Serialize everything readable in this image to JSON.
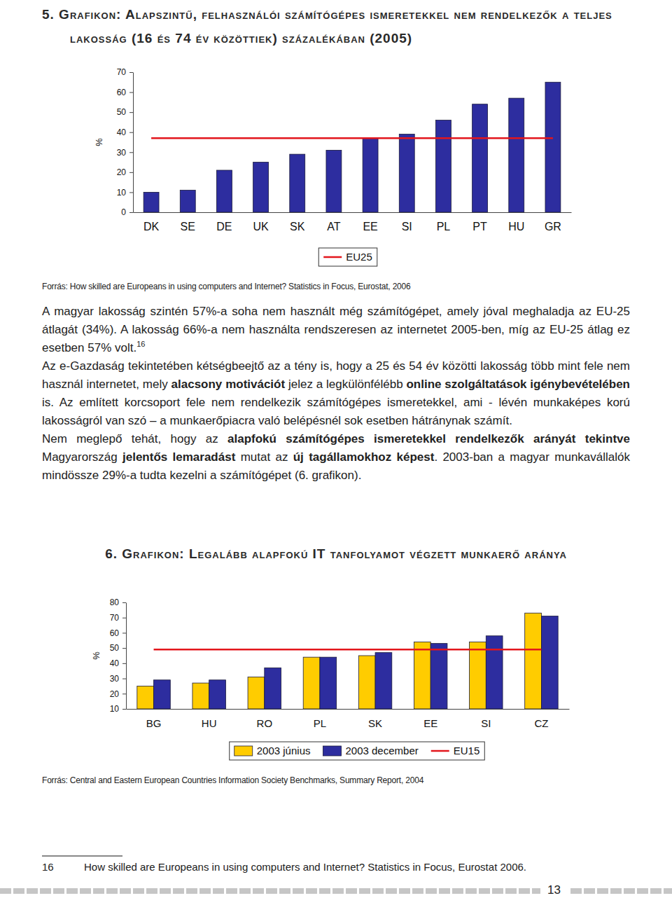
{
  "page": {
    "paragraphs": [
      [
        {
          "text": "A magyar lakosság szintén 57%-a soha nem használt még számítógépet, amely jóval meghaladja az EU-25 átlagát (34%). A lakosság 66%-a nem használta rendszeresen az internetet 2005-ben, míg az EU-25 átlag ez esetben 57% volt."
        },
        {
          "text": "16",
          "sup": true
        }
      ],
      [
        {
          "text": "Az e-Gazdaság tekintetében kétségbeejtő az a tény is, hogy a 25 és 54 év közötti lakosság több mint fele nem használ internetet, mely "
        },
        {
          "text": "alacsony motivációt",
          "bold": true
        },
        {
          "text": " jelez a legkülönfélébb "
        },
        {
          "text": "online szolgáltatások igénybevételében",
          "bold": true
        },
        {
          "text": " is. Az említett korcsoport fele nem rendelkezik számítógépes ismeretekkel, ami - lévén munkaképes korú lakosságról van szó – a munkaerőpiacra való belépésnél sok esetben hátránynak számít."
        }
      ],
      [
        {
          "text": "Nem meglepő tehát, hogy az "
        },
        {
          "text": "alapfokú számítógépes ismeretekkel rendelkezők arányát tekintve",
          "bold": true
        },
        {
          "text": " Magyarország "
        },
        {
          "text": "jelentős lemaradást",
          "bold": true
        },
        {
          "text": " mutat az "
        },
        {
          "text": "új tagállamokhoz képest",
          "bold": true
        },
        {
          "text": ". 2003-ban a magyar munkavállalók mindössze 29%-a tudta kezelni a számítógépet (6. grafikon)."
        }
      ]
    ],
    "footnote": {
      "number": "16",
      "text": "How skilled are Europeans in using computers and Internet? Statistics in Focus, Eurostat 2006."
    },
    "page_number": "13"
  },
  "chart_data": [
    {
      "type": "bar",
      "title": "5. Grafikon: Alapszintű, felhasználói számítógépes ismeretekkel nem rendelkezők a teljes lakosság (16 és 74 év közöttiek) százalékában (2005)",
      "ylabel": "%",
      "categories": [
        "DK",
        "SE",
        "DE",
        "UK",
        "SK",
        "AT",
        "EE",
        "SI",
        "PL",
        "PT",
        "HU",
        "GR"
      ],
      "series": [
        {
          "type": "bar",
          "color": "#2d2d9f",
          "values": [
            10,
            11,
            21,
            25,
            29,
            31,
            37,
            39,
            46,
            54,
            57,
            65
          ]
        },
        {
          "name": "EU25",
          "type": "line",
          "color": "#e3161c",
          "values": [
            37,
            37,
            37,
            37,
            37,
            37,
            37,
            37,
            37,
            37,
            37,
            37
          ]
        }
      ],
      "ylim": [
        0,
        70
      ],
      "yticks": [
        0,
        10,
        20,
        30,
        40,
        50,
        60,
        70
      ],
      "legend": "bottom",
      "source": "Forrás: How skilled are Europeans in using computers and Internet? Statistics in Focus, Eurostat, 2006"
    },
    {
      "type": "bar",
      "title": "6. Grafikon: Legalább alapfokú IT tanfolyamot végzett munkaerő aránya",
      "ylabel": "%",
      "categories": [
        "BG",
        "HU",
        "RO",
        "PL",
        "SK",
        "EE",
        "SI",
        "CZ"
      ],
      "series": [
        {
          "name": "2003 június",
          "type": "bar",
          "color": "#ffcc00",
          "values": [
            25,
            27,
            31,
            44,
            45,
            54,
            54,
            73
          ]
        },
        {
          "name": "2003 december",
          "type": "bar",
          "color": "#2d2d9f",
          "values": [
            29,
            29,
            37,
            44,
            47,
            53,
            58,
            71
          ]
        },
        {
          "name": "EU15",
          "type": "line",
          "color": "#e3161c",
          "values": [
            49,
            49,
            49,
            49,
            49,
            49,
            49,
            49
          ]
        }
      ],
      "ylim": [
        10,
        80
      ],
      "yticks": [
        10,
        20,
        30,
        40,
        50,
        60,
        70,
        80
      ],
      "legend": "bottom",
      "source": "Forrás: Central and Eastern European Countries Information Society Benchmarks, Summary Report, 2004"
    }
  ]
}
